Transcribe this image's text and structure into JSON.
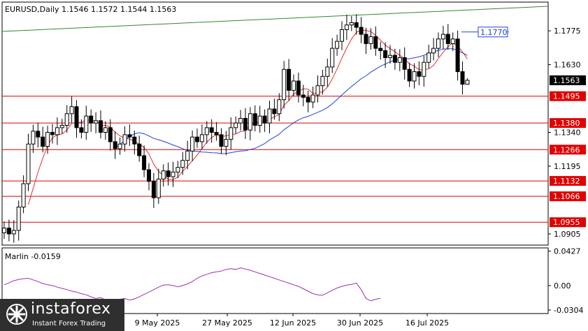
{
  "header": {
    "symbol_text": "EURUSD,Daily  1.1546 1.1572 1.1544 1.1563"
  },
  "chart_data": {
    "type": "candlestick",
    "symbol": "EURUSD",
    "timeframe": "Daily",
    "ohlc_last": {
      "open": 1.1546,
      "high": 1.1572,
      "low": 1.1544,
      "close": 1.1563
    },
    "ylim": [
      1.086,
      1.1895
    ],
    "y_ticks": [
      "1.1775",
      "1.1630",
      "1.1340",
      "1.1195",
      "1.0905"
    ],
    "x_ticks": [
      "9 May 2025",
      "27 May 2025",
      "12 Jun 2025",
      "30 Jun 2025",
      "16 Jul 2025"
    ],
    "current_price_label": "1.1563",
    "levels": [
      {
        "label": "1.1495",
        "value": 1.1495,
        "color": "#e00000"
      },
      {
        "label": "1.1380",
        "value": 1.138,
        "color": "#e00000"
      },
      {
        "label": "1.1266",
        "value": 1.1266,
        "color": "#e00000"
      },
      {
        "label": "1.1132",
        "value": 1.1132,
        "color": "#e00000"
      },
      {
        "label": "1.1066",
        "value": 1.1066,
        "color": "#e00000"
      },
      {
        "label": "1.0955",
        "value": 1.0955,
        "color": "#e00000"
      }
    ],
    "target_label": "1.1770",
    "target_value": 1.177,
    "trend_line_color": "#2e8b2e",
    "ma_fast_color": "#e03030",
    "ma_slow_color": "#2040e0",
    "closes": [
      1.093,
      1.0905,
      1.092,
      1.102,
      1.112,
      1.129,
      1.1345,
      1.132,
      1.128,
      1.134,
      1.133,
      1.136,
      1.137,
      1.142,
      1.145,
      1.136,
      1.134,
      1.141,
      1.138,
      1.139,
      1.134,
      1.136,
      1.13,
      1.127,
      1.129,
      1.133,
      1.132,
      1.129,
      1.124,
      1.118,
      1.113,
      1.106,
      1.114,
      1.1175,
      1.115,
      1.117,
      1.119,
      1.122,
      1.126,
      1.132,
      1.13,
      1.133,
      1.136,
      1.134,
      1.133,
      1.128,
      1.131,
      1.136,
      1.138,
      1.14,
      1.135,
      1.142,
      1.137,
      1.141,
      1.138,
      1.144,
      1.142,
      1.148,
      1.161,
      1.152,
      1.156,
      1.15,
      1.149,
      1.147,
      1.15,
      1.154,
      1.158,
      1.162,
      1.17,
      1.173,
      1.178,
      1.18,
      1.181,
      1.179,
      1.176,
      1.172,
      1.175,
      1.17,
      1.169,
      1.166,
      1.167,
      1.164,
      1.166,
      1.161,
      1.156,
      1.16,
      1.158,
      1.164,
      1.168,
      1.17,
      1.174,
      1.176,
      1.172,
      1.174,
      1.16,
      1.1546,
      1.1563
    ],
    "indicator": {
      "name": "Marlin",
      "value_text": "Marlin -0.0159",
      "y_ticks": [
        "0.0427",
        "0.00",
        "-0.0304"
      ],
      "ylim": [
        -0.033,
        0.045
      ],
      "values": [
        0.001,
        0.0035,
        0.006,
        0.0075,
        0.0085,
        0.009,
        0.007,
        0.005,
        0.0025,
        0.001,
        0.0,
        -0.002,
        -0.0035,
        -0.005,
        -0.007,
        -0.008,
        -0.01,
        -0.0115,
        -0.014,
        -0.016,
        -0.015,
        -0.018,
        -0.023,
        -0.019,
        -0.017,
        -0.016,
        -0.018,
        -0.0165,
        -0.014,
        -0.011,
        -0.008,
        -0.005,
        -0.002,
        0.0005,
        0.001,
        0.0,
        -0.0015,
        0.0,
        0.002,
        0.005,
        0.009,
        0.012,
        0.014,
        0.016,
        0.017,
        0.018,
        0.02,
        0.021,
        0.02,
        0.022,
        0.0205,
        0.019,
        0.017,
        0.015,
        0.013,
        0.011,
        0.009,
        0.007,
        0.005,
        0.003,
        0.001,
        -0.001,
        -0.004,
        -0.007,
        -0.01,
        -0.0115,
        -0.012,
        -0.009,
        -0.006,
        -0.003,
        -0.001,
        0.0005,
        0.0015,
        0.003,
        -0.005,
        -0.016,
        -0.019,
        -0.017,
        -0.0159
      ]
    }
  },
  "branding": {
    "logo_text": "instaforex",
    "tagline": "Instant Forex Trading"
  }
}
